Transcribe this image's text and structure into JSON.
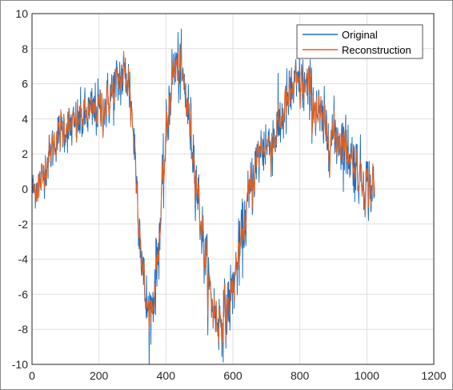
{
  "chart_data": {
    "type": "line",
    "title": "",
    "xlabel": "",
    "ylabel": "",
    "xlim": [
      0,
      1200
    ],
    "ylim": [
      -10,
      10
    ],
    "xticks": [
      0,
      200,
      400,
      600,
      800,
      1000,
      1200
    ],
    "yticks": [
      -10,
      -8,
      -6,
      -4,
      -2,
      0,
      2,
      4,
      6,
      8,
      10
    ],
    "xtick_labels": [
      "0",
      "200",
      "400",
      "600",
      "800",
      "1000",
      "1200"
    ],
    "ytick_labels": [
      "-10",
      "-8",
      "-6",
      "-4",
      "-2",
      "0",
      "2",
      "4",
      "6",
      "8",
      "10"
    ],
    "grid": true,
    "legend_position": "top-right",
    "n_points": 1024,
    "series": [
      {
        "name": "Original",
        "color": "#1f6fbf",
        "envelope_x": [
          0,
          100,
          200,
          280,
          350,
          430,
          560,
          700,
          800,
          900,
          1024
        ],
        "envelope_y": [
          0,
          3.5,
          4.5,
          6.5,
          -7.0,
          7.0,
          -7.5,
          2.5,
          6.0,
          3.0,
          0.0
        ]
      },
      {
        "name": "Reconstruction",
        "color": "#e06020",
        "envelope_x": [
          0,
          100,
          200,
          280,
          350,
          430,
          560,
          700,
          800,
          900,
          1024
        ],
        "envelope_y": [
          0,
          3.5,
          4.5,
          6.5,
          -7.0,
          7.0,
          -7.5,
          2.5,
          6.0,
          3.0,
          0.0
        ]
      }
    ]
  }
}
